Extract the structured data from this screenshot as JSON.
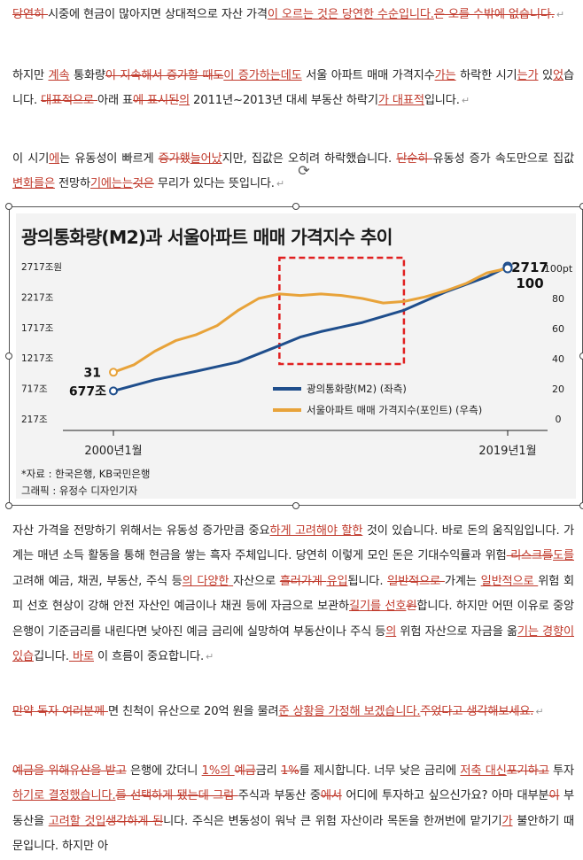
{
  "paragraphs": {
    "p1": {
      "s1": "당연히 ",
      "s2": "시중에 현금이 많아지면 상대적으로 자산 가격",
      "s3": "이 오르는 것은 당연한 수순입니다.",
      "s4": "은 오를 수밖에 없습니다."
    },
    "p2": {
      "s1": "하지만 ",
      "s2": "계속",
      "s3": " 통화량",
      "s4": "이 지속해서 증가할 때도",
      "s5": "이 증가하는데도",
      "s6": " 서울 아파트 매매 가격지수",
      "s7": "가는",
      "s8": " 하락한 시기",
      "s9": "는가",
      "s10": " 있",
      "s11": "었",
      "s12": "습니다. ",
      "s13": "대표적으로 ",
      "s14": "아래 표",
      "s15": "에 표시된",
      "s16": "의",
      "s17": " 2011년~2013년 대세 부동산 하락기",
      "s18": "가 대표적",
      "s19": "입니다."
    },
    "p3": {
      "s1": "이 시기",
      "s2": "에",
      "s3": "는 유동성이 빠르게 ",
      "s4": "증가했",
      "s5": "늘어났",
      "s6": "지만, 집값은 오히려 하락했습니다. ",
      "s7": "단순히 ",
      "s8": "유동성 증가 속도만으로 집값 ",
      "s9": "변화를은",
      "s10": " 전망하",
      "s11": "기에는는",
      "s12": "것은",
      "s13": " 무리가 있다는 뜻입니다."
    },
    "p4": {
      "s1": "자산 가격을 전망하기 위해서는 유동성 증가만큼 중요",
      "s2": "하게 고려해야 할한",
      "s3": " 것이 있습니다. 바로 돈의 움직임입니다. 가계는 매년 소득 활동을 통해 현금을 쌓는 흑자 주체입니다. 당연히 이렇게 모인 돈은 기대수익률과 위험",
      "s4": " 리스크를",
      "s5": "도를",
      "s6": " 고려해 예금, 채권, 부동산, 주식 등",
      "s7": "의 다양한 ",
      "s8": "자산으로 ",
      "s9": "흘러가게 ",
      "s10": "유입",
      "s11": "됩니다. ",
      "s12": "일반적으로 ",
      "s13": "가계는 ",
      "s14": "일반적으로 ",
      "s15": "위험 회피 선호 현상이 강해 안전 자산인 예금이나 채권 등에 자금으로 보관하",
      "s16": "길기를 선호",
      "s17": "원",
      "s18": "합니다. 하지만 어떤 이유로 중앙은행이 기준금리를 내린다면 낮아진 예금 금리에 실망하여 부동산이나 주식 등",
      "s19": "의",
      "s20": " 위험 자산으로 자금을 옮",
      "s21": "기는 경향이 있습",
      "s22": "깁니다.",
      "s23": " 바로",
      "s24": " 이 흐름이 중요합니다."
    },
    "p5": {
      "s1": "만약 독자 여러분께 ",
      "s2": "면 친척이 유산으로 20억 원을 물려",
      "s3": "준 상황을 가정해 보겠습니다.",
      "s4": "주었다고 생각해보세요."
    },
    "p6": {
      "s1": "예금을 위해",
      "s2": "유산을 받고",
      "s3": " 은행에 갔더니 ",
      "s4": "1%의 ",
      "s5": "예금",
      "s6": "금리 ",
      "s7": "1%",
      "s8": "를 제시합니다. 너무 낮은 금리에 ",
      "s9": "저축 대신",
      "s10": "포기하고",
      "s11": " 투자",
      "s12": "하기로 결정했습니다.",
      "s13": "를 선택하게 됐는데 그럼 ",
      "s14": "주식과 부동산 중",
      "s15": "에서",
      "s16": " 어디에 투자하고 싶으신가요? 아마 대부분",
      "s17": "이",
      "s18": " 부동산을 ",
      "s19": "고려할 것입",
      "s20": "생각하게 된",
      "s21": "니다. 주식은 변동성이 워낙 큰 위험 자산이라 목돈을 한꺼번에 맡기기",
      "s22": "가",
      "s23": " 불안하기 때문입니다. 하지만 아"
    }
  },
  "para_mark": "↵",
  "chart_data": {
    "type": "line",
    "title": "광의통화량(M2)과 서울아파트 매매 가격지수 추이",
    "x_start_label": "2000년1월",
    "x_end_label": "2019년1월",
    "left_axis_ticks": [
      "2717조원",
      "2217조",
      "1717조",
      "1217조",
      "717조",
      "217조"
    ],
    "left_axis_values": [
      2717,
      2217,
      1717,
      1217,
      717,
      217
    ],
    "right_axis_label": "100pt",
    "right_axis_ticks": [
      "80",
      "60",
      "40",
      "20",
      "0"
    ],
    "right_axis_values": [
      100,
      80,
      60,
      40,
      20,
      0
    ],
    "series": [
      {
        "name": "광의통화량(M2) (좌측)",
        "axis": "left",
        "color": "#1f4e8c",
        "x": [
          2000,
          2002,
          2004,
          2006,
          2008,
          2009,
          2010,
          2012,
          2014,
          2016,
          2018,
          2019
        ],
        "values": [
          677,
          860,
          1000,
          1150,
          1420,
          1560,
          1650,
          1800,
          2000,
          2300,
          2550,
          2717
        ]
      },
      {
        "name": "서울아파트 매매 가격지수(포인트) (우측)",
        "axis": "right",
        "color": "#e8a33a",
        "x": [
          2000,
          2001,
          2002,
          2003,
          2004,
          2005,
          2006,
          2007,
          2008,
          2009,
          2010,
          2011,
          2012,
          2013,
          2014,
          2015,
          2016,
          2017,
          2018,
          2019
        ],
        "values": [
          31,
          36,
          45,
          52,
          56,
          62,
          72,
          80,
          83,
          82,
          83,
          82,
          80,
          77,
          78,
          81,
          85,
          90,
          97,
          100
        ]
      }
    ],
    "start_labels": {
      "left": "677조",
      "right": "31"
    },
    "end_labels": {
      "left": "2717",
      "right": "100"
    },
    "highlight_range": [
      2008,
      2014
    ],
    "source": "*자료 : 한국은행, KB국민은행",
    "credit": "그래픽 : 유정수 디자인기자"
  }
}
